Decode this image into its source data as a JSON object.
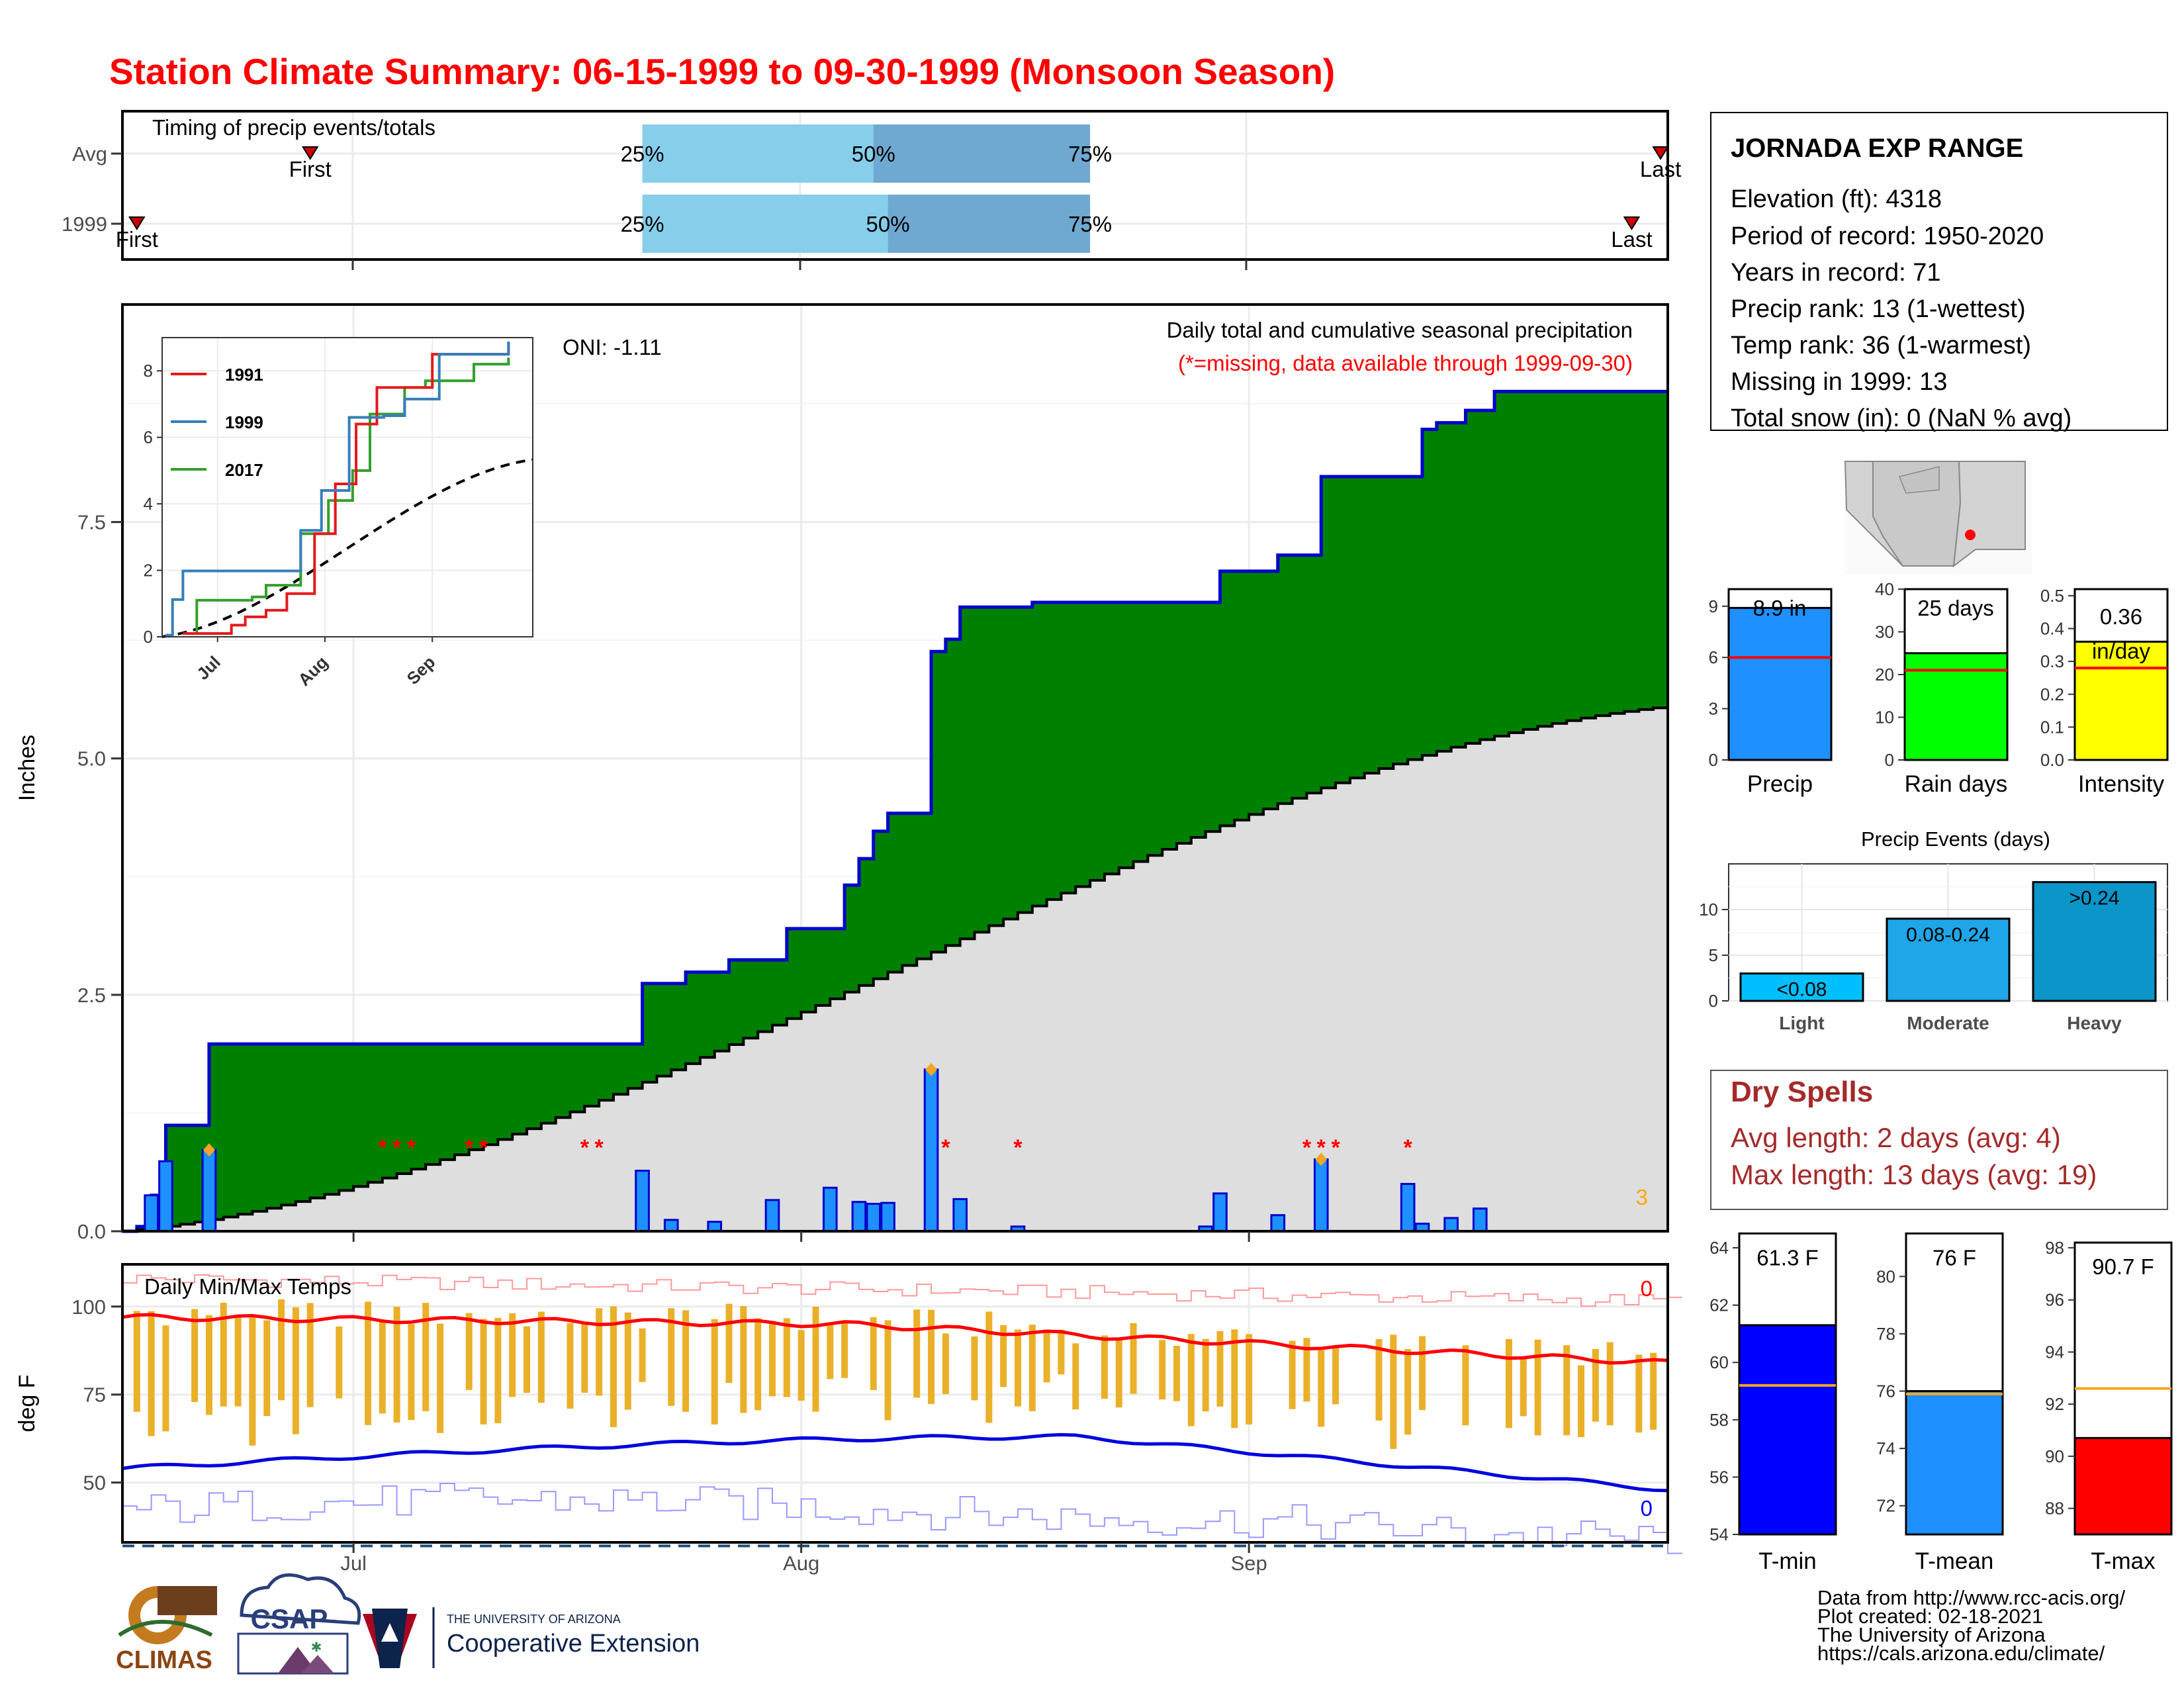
{
  "title": "Station Climate Summary: 06-15-1999 to 09-30-1999 (Monsoon Season)",
  "timing_panel": {
    "heading": "Timing of precip events/totals",
    "rows": [
      {
        "label": "Avg",
        "first_label": "First",
        "last_label": "Last",
        "first": "06-28",
        "q25": "07-21",
        "q50": "08-06",
        "q75": "08-21",
        "last": "09-30"
      },
      {
        "label": "1999",
        "first_label": "First",
        "last_label": "Last",
        "first": "06-16",
        "q25": "07-21",
        "q50": "08-07",
        "q75": "08-21",
        "last": "09-28"
      }
    ],
    "pct_labels": [
      "25%",
      "50%",
      "75%"
    ]
  },
  "station_info": {
    "name": "JORNADA EXP RANGE",
    "lines": [
      "Elevation (ft): 4318",
      "Period of record: 1950-2020",
      "Years in record: 71",
      "Precip rank: 13 (1-wettest)",
      "Temp rank: 36 (1-warmest)",
      "Missing in 1999: 13",
      "Total snow (in): 0 (NaN % avg)"
    ]
  },
  "precip_panel": {
    "annotation_title": "Daily total and cumulative seasonal precipitation",
    "annotation_missing": "(*=missing, data available through 1999-09-30)",
    "oni_label": "ONI: -1.11",
    "ylabel": "Inches",
    "y_ticks": [
      "0.0",
      "2.5",
      "5.0",
      "7.5"
    ],
    "corner_count": "3"
  },
  "temp_panel": {
    "title": "Daily Min/Max Temps",
    "ylabel": "deg F",
    "y_ticks": [
      "50",
      "75",
      "100"
    ],
    "count_high": "0",
    "count_low": "0"
  },
  "x_ticks": [
    "Jul",
    "Aug",
    "Sep"
  ],
  "inset": {
    "legend": [
      "1991",
      "1999",
      "2017"
    ],
    "y_ticks": [
      "0",
      "2",
      "4",
      "6",
      "8"
    ],
    "x_ticks": [
      "Jul",
      "Aug",
      "Sep"
    ]
  },
  "bars_precip": {
    "value": "8.9 in",
    "label": "Precip",
    "ticks": [
      "0",
      "3",
      "6",
      "9"
    ]
  },
  "bars_raindays": {
    "value": "25 days",
    "label": "Rain days",
    "ticks": [
      "0",
      "10",
      "20",
      "30",
      "40"
    ]
  },
  "bars_intensity": {
    "value_line1": "0.36",
    "value_line2": "in/day",
    "label": "Intensity",
    "ticks": [
      "0.0",
      "0.1",
      "0.2",
      "0.3",
      "0.4",
      "0.5"
    ]
  },
  "events": {
    "title": "Precip Events (days)",
    "ticks": [
      "0",
      "5",
      "10"
    ],
    "categories": [
      "Light",
      "Moderate",
      "Heavy"
    ],
    "bar_labels": [
      "<0.08",
      "0.08-0.24",
      ">0.24"
    ]
  },
  "dry_spells": {
    "title": "Dry Spells",
    "line1": "Avg length: 2 days (avg: 4)",
    "line2": "Max length: 13 days (avg: 19)"
  },
  "temp_bars": [
    {
      "value": "61.3 F",
      "label": "T-min",
      "ticks": [
        "54",
        "56",
        "58",
        "60",
        "62",
        "64"
      ]
    },
    {
      "value": "76 F",
      "label": "T-mean",
      "ticks": [
        "72",
        "74",
        "76",
        "78",
        "80"
      ]
    },
    {
      "value": "90.7 F",
      "label": "T-max",
      "ticks": [
        "88",
        "90",
        "92",
        "94",
        "96",
        "98"
      ]
    }
  ],
  "footer": {
    "lines": [
      "Data from http://www.rcc-acis.org/",
      "Plot created: 02-18-2021",
      "The University of Arizona",
      "https://cals.arizona.edu/climate/"
    ],
    "logo_climas": "CLIMAS",
    "logo_csap": "CSAP",
    "logo_ua_small": "THE UNIVERSITY OF ARIZONA",
    "logo_ua_big": "Cooperative Extension"
  },
  "chart_data": [
    {
      "type": "area",
      "title": "Daily total and cumulative seasonal precipitation",
      "ylabel": "Inches",
      "xlim": [
        "1999-06-15",
        "1999-09-30"
      ],
      "ylim": [
        0,
        9.8
      ],
      "series": [
        {
          "name": "1999",
          "steps": [
            [
              "06-15",
              0.0
            ],
            [
              "06-16",
              0.05
            ],
            [
              "06-17",
              0.38
            ],
            [
              "06-18",
              1.12
            ],
            [
              "06-20",
              1.12
            ],
            [
              "06-21",
              1.98
            ],
            [
              "07-21",
              1.98
            ],
            [
              "07-21",
              2.62
            ],
            [
              "07-24",
              2.74
            ],
            [
              "07-25",
              2.74
            ],
            [
              "07-27",
              2.87
            ],
            [
              "07-30",
              2.87
            ],
            [
              "07-31",
              3.2
            ],
            [
              "08-03",
              3.2
            ],
            [
              "08-04",
              3.66
            ],
            [
              "08-05",
              3.94
            ],
            [
              "08-06",
              4.23
            ],
            [
              "08-07",
              4.42
            ],
            [
              "08-09",
              4.42
            ],
            [
              "08-10",
              6.13
            ],
            [
              "08-11",
              6.26
            ],
            [
              "08-12",
              6.6
            ],
            [
              "08-16",
              6.6
            ],
            [
              "08-17",
              6.65
            ],
            [
              "08-29",
              6.65
            ],
            [
              "08-30",
              6.98
            ],
            [
              "09-02",
              6.98
            ],
            [
              "09-03",
              7.15
            ],
            [
              "09-05",
              7.15
            ],
            [
              "09-06",
              7.98
            ],
            [
              "09-12",
              7.98
            ],
            [
              "09-13",
              8.48
            ],
            [
              "09-14",
              8.55
            ],
            [
              "09-15",
              8.55
            ],
            [
              "09-16",
              8.68
            ],
            [
              "09-17",
              8.68
            ],
            [
              "09-18",
              8.88
            ],
            [
              "09-30",
              8.88
            ]
          ]
        },
        {
          "name": "average cumulative",
          "start": 0.0,
          "end": 5.55
        }
      ],
      "daily_bars": [
        [
          "06-17",
          0.38
        ],
        [
          "06-18",
          0.74
        ],
        [
          "06-21",
          0.86
        ],
        [
          "07-21",
          0.64
        ],
        [
          "07-23",
          0.12
        ],
        [
          "07-26",
          0.1
        ],
        [
          "07-30",
          0.33
        ],
        [
          "08-03",
          0.46
        ],
        [
          "08-05",
          0.31
        ],
        [
          "08-06",
          0.29
        ],
        [
          "08-07",
          0.3
        ],
        [
          "08-10",
          1.71
        ],
        [
          "08-12",
          0.34
        ],
        [
          "08-16",
          0.05
        ],
        [
          "08-29",
          0.05
        ],
        [
          "08-30",
          0.4
        ],
        [
          "09-03",
          0.17
        ],
        [
          "09-06",
          0.76
        ],
        [
          "09-12",
          0.5
        ],
        [
          "09-13",
          0.08
        ],
        [
          "09-15",
          0.14
        ],
        [
          "09-17",
          0.24
        ]
      ],
      "missing_markers": [
        "07-03",
        "07-04",
        "07-05",
        "07-09",
        "07-10",
        "07-17",
        "07-18",
        "08-11",
        "08-16",
        "09-05",
        "09-06",
        "09-07",
        "09-12"
      ],
      "record_markers": [
        [
          "06-21",
          0.86
        ],
        [
          "08-10",
          1.71
        ],
        [
          "09-06",
          0.76
        ]
      ]
    },
    {
      "type": "line",
      "title": "Daily Min/Max Temps",
      "ylabel": "deg F",
      "ylim": [
        33,
        112
      ],
      "series": [
        {
          "name": "avg max",
          "start": 97,
          "mid": 95,
          "end": 84
        },
        {
          "name": "avg min",
          "start": 54,
          "mid": 63,
          "end": 48
        },
        {
          "name": "record max",
          "approx": 108
        },
        {
          "name": "record min",
          "approx": 42
        },
        {
          "name": "freeze",
          "value": 32
        }
      ]
    },
    {
      "type": "line",
      "title": "",
      "x": [
        "06-15",
        "09-30"
      ],
      "ylim": [
        0,
        9
      ],
      "series": [
        {
          "name": "1991",
          "points": [
            [
              6,
              0.1
            ],
            [
              20,
              0.35
            ],
            [
              24,
              0.6
            ],
            [
              30,
              0.8
            ],
            [
              36,
              1.3
            ],
            [
              44,
              3.1
            ],
            [
              50,
              4.6
            ],
            [
              56,
              6.4
            ],
            [
              62,
              7.5
            ],
            [
              78,
              8.5
            ],
            [
              100,
              8.85
            ]
          ]
        },
        {
          "name": "1999",
          "points": [
            [
              1,
              0.05
            ],
            [
              3,
              1.12
            ],
            [
              6,
              1.98
            ],
            [
              36,
              1.98
            ],
            [
              40,
              3.2
            ],
            [
              46,
              4.4
            ],
            [
              54,
              6.6
            ],
            [
              64,
              6.65
            ],
            [
              70,
              7.15
            ],
            [
              80,
              8.5
            ],
            [
              100,
              8.88
            ]
          ]
        },
        {
          "name": "2017",
          "points": [
            [
              6,
              0.1
            ],
            [
              10,
              1.1
            ],
            [
              26,
              1.2
            ],
            [
              30,
              1.55
            ],
            [
              40,
              3.1
            ],
            [
              48,
              4.1
            ],
            [
              55,
              5.0
            ],
            [
              60,
              6.7
            ],
            [
              70,
              7.5
            ],
            [
              76,
              7.7
            ],
            [
              90,
              8.2
            ],
            [
              100,
              8.4
            ]
          ]
        },
        {
          "name": "average",
          "start": 0.0,
          "end": 5.55
        }
      ]
    },
    {
      "type": "bar",
      "categories": [
        "Precip"
      ],
      "values": [
        8.9
      ],
      "average": 6.0,
      "ylim": [
        0,
        10
      ]
    },
    {
      "type": "bar",
      "categories": [
        "Rain days"
      ],
      "values": [
        25
      ],
      "average": 21,
      "ylim": [
        0,
        40
      ]
    },
    {
      "type": "bar",
      "categories": [
        "Intensity"
      ],
      "values": [
        0.36
      ],
      "average": 0.28,
      "ylim": [
        0,
        0.52
      ]
    },
    {
      "type": "bar",
      "title": "Precip Events (days)",
      "categories": [
        "Light",
        "Moderate",
        "Heavy"
      ],
      "values": [
        3,
        9,
        13
      ],
      "ylim": [
        0,
        15
      ]
    },
    {
      "type": "bar",
      "categories": [
        "T-min"
      ],
      "values": [
        61.3
      ],
      "average": 59.2,
      "ylim": [
        54,
        64
      ]
    },
    {
      "type": "bar",
      "categories": [
        "T-mean"
      ],
      "values": [
        76
      ],
      "average": 75.9,
      "ylim": [
        71,
        81
      ]
    },
    {
      "type": "bar",
      "categories": [
        "T-max"
      ],
      "values": [
        90.7
      ],
      "average": 92.6,
      "ylim": [
        87,
        98
      ]
    }
  ]
}
